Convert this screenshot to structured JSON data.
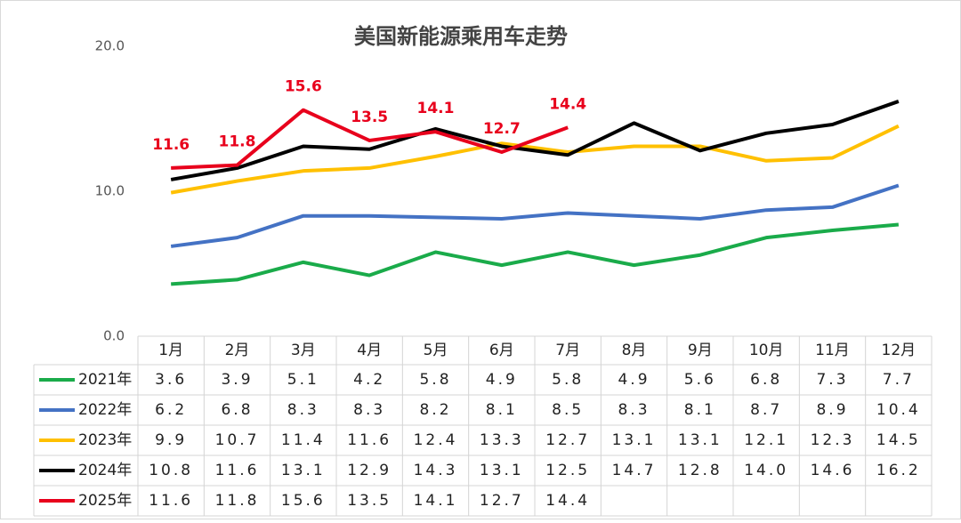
{
  "chart_data": {
    "type": "line",
    "title": "美国新能源乘用车走势",
    "categories": [
      "1月",
      "2月",
      "3月",
      "4月",
      "5月",
      "6月",
      "7月",
      "8月",
      "9月",
      "10月",
      "11月",
      "12月"
    ],
    "ylim": [
      0,
      20
    ],
    "yticks": [
      {
        "value": 0,
        "label": "0.0"
      },
      {
        "value": 10,
        "label": "10.0"
      },
      {
        "value": 20,
        "label": "20.0"
      }
    ],
    "grid": false,
    "series": [
      {
        "name": "2021年",
        "color": "#1aab4a",
        "values": [
          3.6,
          3.9,
          5.1,
          4.2,
          5.8,
          4.9,
          5.8,
          4.9,
          5.6,
          6.8,
          7.3,
          7.7
        ],
        "value_labels": [
          "3.6",
          "3.9",
          "5.1",
          "4.2",
          "5.8",
          "4.9",
          "5.8",
          "4.9",
          "5.6",
          "6.8",
          "7.3",
          "7.7"
        ]
      },
      {
        "name": "2022年",
        "color": "#4472c4",
        "values": [
          6.2,
          6.8,
          8.3,
          8.3,
          8.2,
          8.1,
          8.5,
          8.3,
          8.1,
          8.7,
          8.9,
          10.4
        ],
        "value_labels": [
          "6.2",
          "6.8",
          "8.3",
          "8.3",
          "8.2",
          "8.1",
          "8.5",
          "8.3",
          "8.1",
          "8.7",
          "8.9",
          "10.4"
        ]
      },
      {
        "name": "2023年",
        "color": "#ffc000",
        "values": [
          9.9,
          10.7,
          11.4,
          11.6,
          12.4,
          13.3,
          12.7,
          13.1,
          13.1,
          12.1,
          12.3,
          14.5
        ],
        "value_labels": [
          "9.9",
          "10.7",
          "11.4",
          "11.6",
          "12.4",
          "13.3",
          "12.7",
          "13.1",
          "13.1",
          "12.1",
          "12.3",
          "14.5"
        ]
      },
      {
        "name": "2024年",
        "color": "#000000",
        "values": [
          10.8,
          11.6,
          13.1,
          12.9,
          14.3,
          13.1,
          12.5,
          14.7,
          12.8,
          14,
          14.6,
          16.2
        ],
        "value_labels": [
          "10.8",
          "11.6",
          "13.1",
          "12.9",
          "14.3",
          "13.1",
          "12.5",
          "14.7",
          "12.8",
          "14.0",
          "14.6",
          "16.2"
        ]
      },
      {
        "name": "2025年",
        "color": "#e8001c",
        "values": [
          11.6,
          11.8,
          15.6,
          13.5,
          14.1,
          12.7,
          14.4,
          null,
          null,
          null,
          null,
          null
        ],
        "value_labels": [
          "11.6",
          "11.8",
          "15.6",
          "13.5",
          "14.1",
          "12.7",
          "14.4",
          null,
          null,
          null,
          null,
          null
        ],
        "data_labels": true
      }
    ]
  }
}
